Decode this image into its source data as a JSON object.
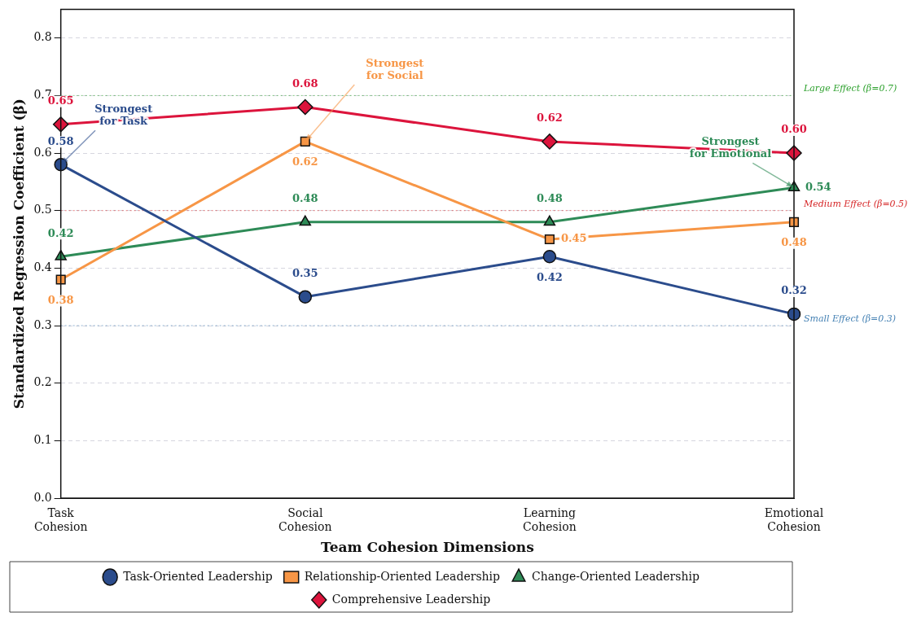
{
  "chart_data": {
    "type": "line",
    "xlabel": "Team Cohesion Dimensions",
    "ylabel": "Standardized Regression Coefficient (β)",
    "categories": [
      "Task Cohesion",
      "Social Cohesion",
      "Learning Cohesion",
      "Emotional Cohesion"
    ],
    "series": [
      {
        "name": "Task-Oriented Leadership",
        "color": "#2b4c8c",
        "marker": "circle",
        "values": [
          0.58,
          0.35,
          0.42,
          0.32
        ]
      },
      {
        "name": "Relationship-Oriented Leadership",
        "color": "#f79646",
        "marker": "square",
        "values": [
          0.38,
          0.62,
          0.45,
          0.48
        ]
      },
      {
        "name": "Change-Oriented Leadership",
        "color": "#2e8b57",
        "marker": "triangle",
        "values": [
          0.42,
          0.48,
          0.48,
          0.54
        ]
      },
      {
        "name": "Comprehensive Leadership",
        "color": "#dc143c",
        "marker": "diamond",
        "values": [
          0.65,
          0.68,
          0.62,
          0.6
        ]
      }
    ],
    "ylim": [
      0,
      0.85
    ],
    "yticks": [
      {
        "value": 0,
        "label": "0.0"
      },
      0.1,
      0.2,
      0.3,
      0.4,
      0.5,
      0.6,
      0.7,
      0.8
    ],
    "grid": "y",
    "legend": "bottom",
    "value_labels": [
      [
        "0.58",
        "0.35",
        "0.42",
        "0.32"
      ],
      [
        "0.38",
        "0.62",
        "0.45",
        "0.48"
      ],
      [
        "0.42",
        "0.48",
        "0.48",
        "0.54"
      ],
      [
        "0.65",
        "0.68",
        "0.62",
        "0.60"
      ]
    ],
    "ref_lines": [
      {
        "axis": "y",
        "value": 0.7,
        "label": "Large Effect (β=0.7)",
        "color": "#2ca02c",
        "line_style": "dotted"
      },
      {
        "axis": "y",
        "value": 0.5,
        "label": "Medium Effect (β=0.5)",
        "color": "#d62728",
        "line_style": "dotted"
      },
      {
        "axis": "y",
        "value": 0.3,
        "label": "Small Effect (β=0.3)",
        "color": "#4682b4",
        "line_style": "dotted"
      }
    ],
    "annotations": [
      {
        "text": "Strongest for Task",
        "x": "Task Cohesion",
        "y": 0.58
      },
      {
        "text": "Strongest for Social",
        "x": "Social Cohesion",
        "y": 0.62
      },
      {
        "text": "Strongest for Emotional",
        "x": "Emotional Cohesion",
        "y": 0.54
      }
    ]
  }
}
